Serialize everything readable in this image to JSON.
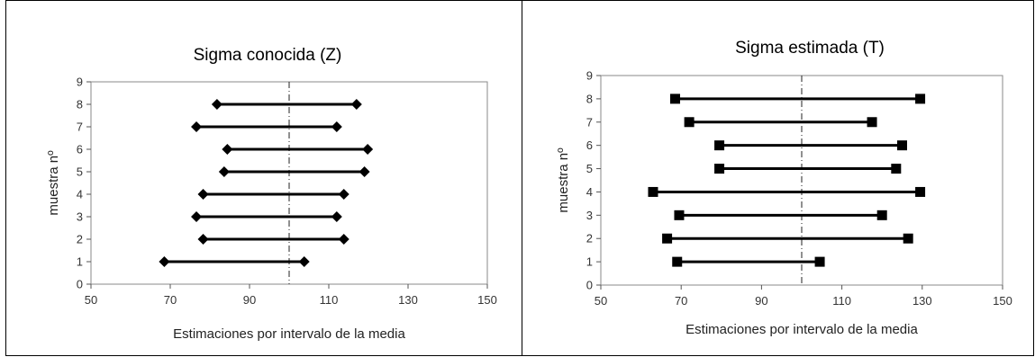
{
  "chart_data": [
    {
      "type": "interval",
      "title": "Sigma conocida (Z)",
      "xlabel": "Estimaciones por intervalo de la media",
      "ylabel": "muestra nº",
      "xlim": [
        50,
        150
      ],
      "ylim": [
        0,
        9
      ],
      "xticks": [
        "50",
        "70",
        "90",
        "110",
        "130",
        "150"
      ],
      "yticks": [
        "0",
        "1",
        "2",
        "3",
        "4",
        "5",
        "6",
        "7",
        "8",
        "9"
      ],
      "reference_x": 100,
      "marker": "diamond",
      "intervals": [
        {
          "sample": 1,
          "low": 68.5,
          "high": 103.8
        },
        {
          "sample": 2,
          "low": 78.3,
          "high": 113.8
        },
        {
          "sample": 3,
          "low": 76.6,
          "high": 112.0
        },
        {
          "sample": 4,
          "low": 78.3,
          "high": 113.8
        },
        {
          "sample": 5,
          "low": 83.6,
          "high": 119.0
        },
        {
          "sample": 6,
          "low": 84.4,
          "high": 119.8
        },
        {
          "sample": 7,
          "low": 76.6,
          "high": 112.0
        },
        {
          "sample": 8,
          "low": 81.8,
          "high": 117.0
        }
      ]
    },
    {
      "type": "interval",
      "title": "Sigma estimada (T)",
      "xlabel": "Estimaciones por intervalo de la media",
      "ylabel": "muestra nº",
      "xlim": [
        50,
        150
      ],
      "ylim": [
        0,
        9
      ],
      "xticks": [
        "50",
        "70",
        "90",
        "110",
        "130",
        "150"
      ],
      "yticks": [
        "0",
        "1",
        "2",
        "3",
        "4",
        "5",
        "6",
        "7",
        "8",
        "9"
      ],
      "reference_x": 100,
      "marker": "square",
      "intervals": [
        {
          "sample": 1,
          "low": 69.0,
          "high": 104.5
        },
        {
          "sample": 2,
          "low": 66.5,
          "high": 126.5
        },
        {
          "sample": 3,
          "low": 69.5,
          "high": 120.0
        },
        {
          "sample": 4,
          "low": 63.0,
          "high": 129.5
        },
        {
          "sample": 5,
          "low": 79.5,
          "high": 123.5
        },
        {
          "sample": 6,
          "low": 79.5,
          "high": 125.0
        },
        {
          "sample": 7,
          "low": 72.0,
          "high": 117.5
        },
        {
          "sample": 8,
          "low": 68.5,
          "high": 129.5
        }
      ]
    }
  ]
}
